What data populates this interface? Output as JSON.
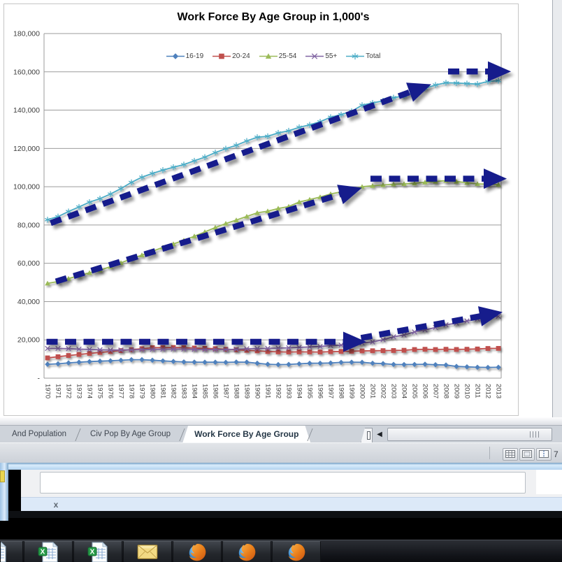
{
  "chart_data": {
    "type": "line",
    "title": "Work Force By Age Group in 1,000's",
    "xlabel": "",
    "ylabel": "",
    "ylim": [
      0,
      180000
    ],
    "ytick_step": 20000,
    "ytick_labels": [
      "-",
      "20,000",
      "40,000",
      "60,000",
      "80,000",
      "100,000",
      "120,000",
      "140,000",
      "160,000",
      "180,000"
    ],
    "grid": true,
    "legend_position": "top-center",
    "annotation_color": "#141c8c",
    "x": [
      1970,
      1971,
      1972,
      1973,
      1974,
      1975,
      1976,
      1977,
      1978,
      1979,
      1980,
      1981,
      1982,
      1983,
      1984,
      1985,
      1986,
      1987,
      1988,
      1989,
      1990,
      1991,
      1992,
      1993,
      1994,
      1995,
      1996,
      1997,
      1998,
      1999,
      2000,
      2001,
      2002,
      2003,
      2004,
      2005,
      2006,
      2007,
      2008,
      2009,
      2010,
      2011,
      2012,
      2013
    ],
    "series": [
      {
        "name": "16-19",
        "color": "#4F81BD",
        "marker": "diamond",
        "values": [
          7249,
          7470,
          7960,
          8334,
          8639,
          8870,
          9056,
          9351,
          9652,
          9638,
          9378,
          9032,
          8722,
          8484,
          8375,
          8312,
          8312,
          8250,
          8406,
          8372,
          7792,
          7265,
          7096,
          7170,
          7481,
          7765,
          7806,
          7932,
          8256,
          8333,
          8271,
          7802,
          7585,
          7170,
          7114,
          7164,
          7281,
          7012,
          6858,
          6133,
          5905,
          5686,
          5609,
          5695
        ]
      },
      {
        "name": "20-24",
        "color": "#C0504D",
        "marker": "square",
        "values": [
          10597,
          11198,
          11844,
          12382,
          12938,
          13418,
          13904,
          14409,
          14891,
          15379,
          15919,
          15963,
          16037,
          15923,
          15752,
          15571,
          15406,
          15113,
          14822,
          14549,
          14271,
          13912,
          13728,
          13673,
          13722,
          13688,
          13661,
          13840,
          13961,
          14061,
          14250,
          14326,
          14387,
          14441,
          14570,
          14963,
          15093,
          14956,
          15102,
          14997,
          15111,
          15246,
          15508,
          15558
        ]
      },
      {
        "name": "25-54",
        "color": "#9BBB59",
        "marker": "triangle",
        "values": [
          49518,
          50459,
          52022,
          53528,
          55035,
          56412,
          58227,
          60244,
          62327,
          64266,
          66277,
          68298,
          70103,
          71974,
          74163,
          76382,
          78696,
          80773,
          82536,
          84476,
          86331,
          87243,
          88654,
          89650,
          92000,
          93300,
          94600,
          96200,
          97300,
          98650,
          99974,
          100500,
          100900,
          101300,
          101500,
          101800,
          102300,
          102700,
          103200,
          102700,
          102100,
          101500,
          101300,
          101100
        ]
      },
      {
        "name": "55+",
        "color": "#8064A2",
        "marker": "x",
        "values": [
          15518,
          15513,
          15404,
          15147,
          15023,
          14817,
          14678,
          14705,
          14802,
          14946,
          15039,
          15094,
          15181,
          15139,
          15036,
          14930,
          14919,
          14984,
          15117,
          15345,
          15458,
          15540,
          15697,
          15852,
          16065,
          16337,
          16536,
          17037,
          17237,
          17696,
          18398,
          18905,
          20093,
          21592,
          22551,
          24122,
          25192,
          26459,
          27857,
          28773,
          29878,
          30922,
          31770,
          32313
        ]
      },
      {
        "name": "Total",
        "color": "#4BACC6",
        "marker": "star",
        "values": [
          82771,
          84382,
          87034,
          89429,
          91949,
          93775,
          96158,
          99009,
          102251,
          104962,
          106940,
          108670,
          110204,
          111550,
          113544,
          115461,
          117834,
          119865,
          121669,
          123869,
          125840,
          126346,
          128105,
          129200,
          131056,
          132304,
          133943,
          136297,
          137673,
          139368,
          142583,
          143734,
          144863,
          146510,
          147401,
          149320,
          151428,
          153124,
          154287,
          154142,
          153889,
          153617,
          154975,
          155389
        ]
      }
    ],
    "arrows": [
      {
        "from": [
          1970.3,
          81000
        ],
        "to": [
          2006.6,
          153500
        ]
      },
      {
        "from": [
          2008.2,
          160200
        ],
        "to": [
          2014.2,
          160200
        ]
      },
      {
        "from": [
          1970.8,
          50500
        ],
        "to": [
          2000.0,
          99500
        ]
      },
      {
        "from": [
          2000.8,
          104200
        ],
        "to": [
          2013.8,
          104200
        ]
      },
      {
        "from": [
          1969.9,
          19000
        ],
        "to": [
          2000.4,
          19000
        ]
      },
      {
        "from": [
          1999.9,
          21000
        ],
        "to": [
          2013.4,
          34500
        ]
      }
    ]
  },
  "sheet_tabs": {
    "tabs": [
      {
        "label": "And Population",
        "active": false
      },
      {
        "label": "Civ Pop By Age Group",
        "active": false
      },
      {
        "label": "Work Force By Age Group",
        "active": true
      }
    ],
    "scroll_left_glyph": "◀"
  },
  "status_bar": {
    "view_buttons": [
      "normal-view",
      "page-layout-view",
      "page-break-preview"
    ],
    "zoom_text": "7"
  },
  "find_bar": {
    "close_label": "x"
  },
  "taskbar": {
    "buttons": [
      {
        "icon": "excel-workbook",
        "partial": true
      },
      {
        "icon": "excel-workbook",
        "partial": false
      },
      {
        "icon": "excel-workbook",
        "partial": false
      },
      {
        "icon": "mail-envelope",
        "partial": false
      },
      {
        "icon": "firefox",
        "partial": false
      },
      {
        "icon": "firefox",
        "partial": false
      },
      {
        "icon": "firefox",
        "partial": false
      }
    ]
  }
}
